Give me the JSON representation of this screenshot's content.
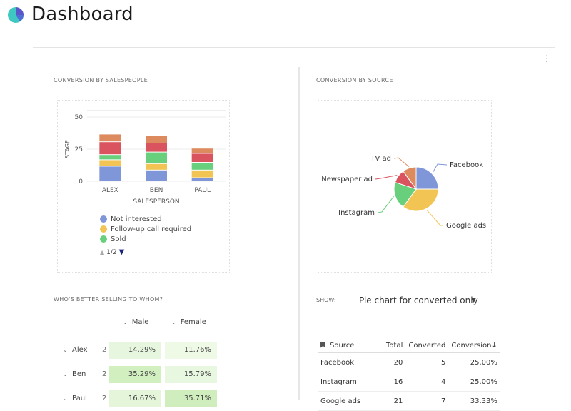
{
  "header": {
    "title": "Dashboard"
  },
  "menu": {
    "kebab": "⋮"
  },
  "conversion_by_salespeople": {
    "title": "CONVERSION BY SALESPEOPLE",
    "legend": [
      {
        "label": "Not interested",
        "color": "#7f96d9"
      },
      {
        "label": "Follow-up call required",
        "color": "#f1c453"
      },
      {
        "label": "Sold",
        "color": "#68cf7c"
      }
    ],
    "pager": {
      "text": "1/2",
      "up": "▲",
      "down": "▼"
    }
  },
  "chart_data": [
    {
      "type": "bar",
      "stacked": true,
      "categories": [
        "ALEX",
        "BEN",
        "PAUL"
      ],
      "xlabel": "SALESPERSON",
      "ylabel": "STAGE",
      "ylim": [
        0,
        50
      ],
      "yticks": [
        0,
        25,
        50
      ],
      "series": [
        {
          "name": "Not interested",
          "color": "#7f96d9",
          "values": [
            12,
            9,
            3
          ]
        },
        {
          "name": "Follow-up call required",
          "color": "#f1c453",
          "values": [
            5,
            5,
            6
          ]
        },
        {
          "name": "Sold",
          "color": "#68cf7c",
          "values": [
            4,
            9,
            6
          ]
        },
        {
          "color": "#d9545f",
          "values": [
            10,
            7,
            7
          ]
        },
        {
          "color": "#dd8a5f",
          "values": [
            6,
            6,
            4
          ]
        }
      ]
    },
    {
      "type": "pie",
      "title": "CONVERSION BY SOURCE",
      "slices": [
        {
          "label": "Facebook",
          "value": 25,
          "color": "#7f96d9"
        },
        {
          "label": "Google ads",
          "value": 35,
          "color": "#f1c453"
        },
        {
          "label": "Instagram",
          "value": 20,
          "color": "#68cf7c"
        },
        {
          "label": "Newspaper ad",
          "value": 10,
          "color": "#d9545f"
        },
        {
          "label": "TV ad",
          "value": 10,
          "color": "#dd8a5f"
        }
      ]
    }
  ],
  "conversion_by_source": {
    "title": "CONVERSION BY SOURCE",
    "show_label": "SHOW:",
    "show_value": "Pie chart for converted only",
    "table": {
      "headers": [
        "Source",
        "Total",
        "Converted",
        "Conversion"
      ],
      "sort_indicator": "↓",
      "rows": [
        [
          "Facebook",
          "20",
          "5",
          "25.00%"
        ],
        [
          "Instagram",
          "16",
          "4",
          "25.00%"
        ],
        [
          "Google ads",
          "21",
          "7",
          "33.33%"
        ]
      ]
    }
  },
  "whos_better": {
    "title": "WHO'S BETTER SELLING TO WHOM?",
    "columns": [
      "Male",
      "Female"
    ],
    "rows": [
      {
        "name": "Alex",
        "count": "2",
        "male": "14.29%",
        "female": "11.76%",
        "male_color": "#e7f6de",
        "female_color": "#eef9e6"
      },
      {
        "name": "Ben",
        "count": "2",
        "male": "35.29%",
        "female": "15.79%",
        "male_color": "#d2efc0",
        "female_color": "#e8f7df"
      },
      {
        "name": "Paul",
        "count": "2",
        "male": "16.67%",
        "female": "35.71%",
        "male_color": "#e4f5da",
        "female_color": "#d0eebd"
      }
    ]
  }
}
